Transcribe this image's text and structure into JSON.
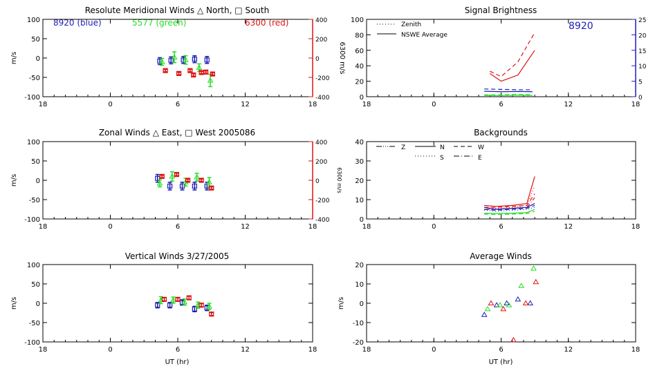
{
  "chart_data": [
    {
      "id": "meridional",
      "type": "scatter",
      "title": "Resolute Meridional Winds △ North, □ South",
      "xlabel": "",
      "ylabel": "m/s",
      "y2label": "6300 m/s",
      "xlim": [
        18,
        42
      ],
      "ylim": [
        -100,
        100
      ],
      "y2lim": [
        -400,
        400
      ],
      "xticks": [
        18,
        24,
        30,
        36,
        42
      ],
      "xticklabels": [
        "18",
        "0",
        "6",
        "12",
        "18"
      ],
      "yticks": [
        -100,
        -50,
        0,
        50,
        100
      ],
      "yticklabels": [
        "-100",
        "-50",
        "0",
        "50",
        "100"
      ],
      "y2ticks": [
        -400,
        -200,
        0,
        200,
        400
      ],
      "y2ticklabels": [
        "-400",
        "-200",
        "0",
        "200",
        "400"
      ],
      "annotations": [
        {
          "text": "8920 (blue)",
          "color": "#1c1cb4"
        },
        {
          "text": "5577 (green)",
          "color": "#22dd22"
        },
        {
          "text": "6300 (red)",
          "color": "#dd1111"
        }
      ],
      "series": [
        {
          "color": "#1c1cb4",
          "axis": "left",
          "x": [
            28.4,
            29.4,
            30.5,
            31.5,
            32.6
          ],
          "y": [
            -8,
            -6,
            -5,
            -3,
            -5
          ],
          "err": [
            9,
            9,
            9,
            9,
            9
          ]
        },
        {
          "color": "#22dd22",
          "axis": "left",
          "x": [
            28.6,
            29.7,
            30.7,
            31.9,
            32.9
          ],
          "y": [
            -10,
            2,
            -5,
            -25,
            -58
          ],
          "err": [
            9,
            14,
            11,
            10,
            16
          ]
        },
        {
          "color": "#dd1111",
          "axis": "right",
          "x": [
            28.9,
            30.1,
            31.1,
            31.4,
            32.1,
            32.5,
            33.1
          ],
          "y": [
            -130,
            -160,
            -130,
            -175,
            -150,
            -145,
            -165
          ],
          "err": [
            12,
            12,
            12,
            12,
            12,
            12,
            12
          ]
        }
      ]
    },
    {
      "id": "zonal",
      "type": "scatter",
      "title": "Zonal Winds △ East, □ West 2005086",
      "xlabel": "",
      "ylabel": "m/s",
      "y2label": "6300 m/s",
      "xlim": [
        18,
        42
      ],
      "ylim": [
        -100,
        100
      ],
      "y2lim": [
        -400,
        400
      ],
      "xticks": [
        18,
        24,
        30,
        36,
        42
      ],
      "xticklabels": [
        "18",
        "0",
        "6",
        "12",
        "18"
      ],
      "yticks": [
        -100,
        -50,
        0,
        50,
        100
      ],
      "yticklabels": [
        "-100",
        "-50",
        "0",
        "50",
        "100"
      ],
      "y2ticks": [
        -400,
        -200,
        0,
        200,
        400
      ],
      "y2ticklabels": [
        "-400",
        "-200",
        "0",
        "200",
        "400"
      ],
      "annotations": [],
      "series": [
        {
          "color": "#1c1cb4",
          "axis": "left",
          "x": [
            28.2,
            29.3,
            30.4,
            31.5,
            32.6
          ],
          "y": [
            5,
            -15,
            -15,
            -15,
            -15
          ],
          "err": [
            10,
            10,
            10,
            10,
            10
          ]
        },
        {
          "color": "#22dd22",
          "axis": "left",
          "x": [
            28.4,
            29.5,
            30.7,
            31.7,
            32.8
          ],
          "y": [
            -8,
            10,
            -5,
            8,
            -5
          ],
          "err": [
            9,
            12,
            10,
            10,
            12
          ]
        },
        {
          "color": "#dd1111",
          "axis": "right",
          "x": [
            28.6,
            29.9,
            30.9,
            32.1,
            33.0
          ],
          "y": [
            40,
            60,
            0,
            0,
            -80
          ],
          "err": [
            12,
            12,
            12,
            12,
            12
          ]
        }
      ]
    },
    {
      "id": "vertical",
      "type": "scatter",
      "title": "Vertical Winds 3/27/2005",
      "xlabel": "UT (hr)",
      "ylabel": "m/s",
      "xlim": [
        18,
        42
      ],
      "ylim": [
        -100,
        100
      ],
      "xticks": [
        18,
        24,
        30,
        36,
        42
      ],
      "xticklabels": [
        "18",
        "0",
        "6",
        "12",
        "18"
      ],
      "yticks": [
        -100,
        -50,
        0,
        50,
        100
      ],
      "yticklabels": [
        "-100",
        "-50",
        "0",
        "50",
        "100"
      ],
      "annotations": [],
      "series": [
        {
          "color": "#1c1cb4",
          "axis": "left",
          "x": [
            28.2,
            29.3,
            30.4,
            31.5,
            32.6
          ],
          "y": [
            -5,
            -5,
            2,
            -15,
            -12
          ],
          "err": [
            7,
            7,
            7,
            7,
            7
          ]
        },
        {
          "color": "#22dd22",
          "axis": "left",
          "x": [
            28.5,
            29.6,
            30.6,
            31.8,
            32.8
          ],
          "y": [
            8,
            8,
            3,
            -5,
            -8
          ],
          "err": [
            9,
            8,
            8,
            8,
            8
          ]
        },
        {
          "color": "#dd1111",
          "axis": "left",
          "x": [
            28.8,
            30.0,
            31.0,
            32.1,
            33.0
          ],
          "y": [
            10,
            10,
            14,
            -5,
            -28
          ],
          "err": [
            4,
            4,
            4,
            4,
            4
          ]
        }
      ]
    },
    {
      "id": "brightness",
      "type": "line",
      "title": "Signal Brightness",
      "xlabel": "",
      "ylabel": "",
      "xlim": [
        18,
        42
      ],
      "ylim": [
        0,
        100
      ],
      "y2lim": [
        0,
        25
      ],
      "xticks": [
        18,
        24,
        30,
        36,
        42
      ],
      "xticklabels": [
        "18",
        "0",
        "6",
        "12",
        "18"
      ],
      "yticks": [
        0,
        20,
        40,
        60,
        80,
        100
      ],
      "yticklabels": [
        "0",
        "20",
        "40",
        "60",
        "80",
        "100"
      ],
      "y2ticks": [
        0,
        5,
        10,
        15,
        20,
        25
      ],
      "y2ticklabels": [
        "0",
        "5",
        "10",
        "15",
        "20",
        "25"
      ],
      "corner_label": "8920",
      "legend": [
        {
          "label": "Zenith",
          "dash": "1,3"
        },
        {
          "label": "NSWE Average",
          "dash": ""
        }
      ],
      "series": [
        {
          "color": "#dd1111",
          "dash": "",
          "x": [
            29.0,
            30.0,
            31.5,
            33.0
          ],
          "y": [
            30,
            20,
            28,
            60
          ]
        },
        {
          "color": "#dd1111",
          "dash": "6,4",
          "x": [
            29.0,
            30.0,
            31.5,
            33.0
          ],
          "y": [
            33,
            26,
            45,
            83
          ]
        },
        {
          "color": "#1c1cb4",
          "dash": "",
          "x": [
            28.5,
            30.0,
            31.5,
            32.8
          ],
          "y": [
            7,
            6.5,
            6.8,
            6.5
          ]
        },
        {
          "color": "#1c1cb4",
          "dash": "6,4",
          "x": [
            28.5,
            30.0,
            31.5,
            32.8
          ],
          "y": [
            10,
            9.5,
            9,
            9
          ]
        },
        {
          "color": "#22dd22",
          "dash": "",
          "x": [
            28.5,
            30.0,
            31.5,
            32.8
          ],
          "y": [
            1.5,
            1.5,
            2,
            1.5
          ]
        },
        {
          "color": "#22dd22",
          "dash": "6,4",
          "x": [
            28.5,
            30.0,
            31.5,
            32.8
          ],
          "y": [
            2.5,
            2.5,
            3,
            2.5
          ]
        }
      ]
    },
    {
      "id": "backgrounds",
      "type": "line",
      "title": "Backgrounds",
      "xlabel": "",
      "ylabel": "",
      "xlim": [
        18,
        42
      ],
      "ylim": [
        0,
        40
      ],
      "xticks": [
        18,
        24,
        30,
        36,
        42
      ],
      "xticklabels": [
        "18",
        "0",
        "6",
        "12",
        "18"
      ],
      "yticks": [
        0,
        10,
        20,
        30,
        40
      ],
      "yticklabels": [
        "0",
        "10",
        "20",
        "30",
        "40"
      ],
      "legend": [
        {
          "label": "Z",
          "dash": "8,2,1,2,1,2,1,2"
        },
        {
          "label": "N",
          "dash": ""
        },
        {
          "label": "W",
          "dash": "6,4"
        },
        {
          "label": "S",
          "dash": "1,3"
        },
        {
          "label": "E",
          "dash": "8,3,1,3"
        }
      ],
      "series": [
        {
          "color": "#dd1111",
          "dash": "",
          "x": [
            28.5,
            29.5,
            31.0,
            32.3,
            33.0
          ],
          "y": [
            7,
            6.5,
            7,
            8,
            22
          ]
        },
        {
          "color": "#dd1111",
          "dash": "1,3",
          "x": [
            28.5,
            29.5,
            31.0,
            32.3,
            33.0
          ],
          "y": [
            6,
            5.5,
            6,
            7,
            17
          ]
        },
        {
          "color": "#dd1111",
          "dash": "6,4",
          "x": [
            28.5,
            29.5,
            31.0,
            32.3,
            33.0
          ],
          "y": [
            6,
            6,
            6.5,
            7,
            13
          ]
        },
        {
          "color": "#dd1111",
          "dash": "8,3,1,3",
          "x": [
            28.5,
            29.5,
            31.0,
            32.3,
            33.0
          ],
          "y": [
            5,
            5,
            5.5,
            6,
            11
          ]
        },
        {
          "color": "#1c1cb4",
          "dash": "",
          "x": [
            28.5,
            29.5,
            31.0,
            32.3,
            33.0
          ],
          "y": [
            6,
            5,
            5.5,
            6,
            8
          ]
        },
        {
          "color": "#1c1cb4",
          "dash": "6,4",
          "x": [
            28.5,
            29.5,
            31.0,
            32.3,
            33.0
          ],
          "y": [
            5,
            4.5,
            5,
            5.5,
            7
          ]
        },
        {
          "color": "#1c1cb4",
          "dash": "1,3",
          "x": [
            28.5,
            29.5,
            31.0,
            32.3,
            33.0
          ],
          "y": [
            4.5,
            4,
            4.5,
            5,
            6
          ]
        },
        {
          "color": "#22dd22",
          "dash": "",
          "x": [
            28.5,
            29.5,
            31.0,
            32.3,
            33.0
          ],
          "y": [
            3,
            2.8,
            3,
            3.3,
            5
          ]
        },
        {
          "color": "#22dd22",
          "dash": "6,4",
          "x": [
            28.5,
            29.5,
            31.0,
            32.3,
            33.0
          ],
          "y": [
            2.5,
            2.3,
            2.5,
            2.8,
            4
          ]
        }
      ]
    },
    {
      "id": "average",
      "type": "scatter",
      "title": "Average Winds",
      "xlabel": "UT (hr)",
      "ylabel": "m/s",
      "xlim": [
        18,
        42
      ],
      "ylim": [
        -20,
        20
      ],
      "xticks": [
        18,
        24,
        30,
        36,
        42
      ],
      "xticklabels": [
        "18",
        "0",
        "6",
        "12",
        "18"
      ],
      "yticks": [
        -20,
        -10,
        0,
        10,
        20
      ],
      "yticklabels": [
        "-20",
        "-10",
        "0",
        "10",
        "20"
      ],
      "series": [
        {
          "color": "#1c1cb4",
          "x": [
            28.5,
            29.6,
            30.5,
            31.5,
            32.6
          ],
          "y": [
            -6,
            -1,
            0,
            2,
            0
          ]
        },
        {
          "color": "#22dd22",
          "x": [
            28.8,
            29.9,
            30.7,
            31.8,
            32.9
          ],
          "y": [
            -3,
            -1,
            -1,
            9,
            18
          ]
        },
        {
          "color": "#dd1111",
          "x": [
            29.1,
            30.2,
            31.1,
            32.2,
            33.1
          ],
          "y": [
            0,
            -3,
            -19,
            0,
            11
          ]
        }
      ]
    }
  ]
}
